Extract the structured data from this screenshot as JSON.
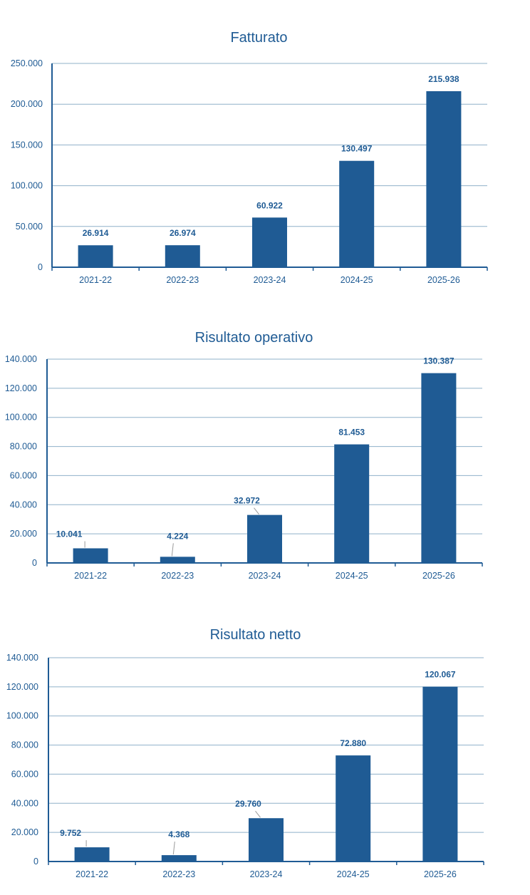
{
  "chart_data": [
    {
      "type": "bar",
      "title": "Fatturato",
      "categories": [
        "2021-22",
        "2022-23",
        "2023-24",
        "2024-25",
        "2025-26"
      ],
      "values": [
        26914,
        26974,
        60922,
        130497,
        215938
      ],
      "value_labels": [
        "26.914",
        "26.974",
        "60.922",
        "130.497",
        "215.938"
      ],
      "ylim": [
        0,
        250000
      ],
      "yticks": [
        "0",
        "50.000",
        "100.000",
        "150.000",
        "200.000",
        "250.000"
      ],
      "xlabel": "",
      "ylabel": "",
      "grid": true,
      "color": "#1f5b94"
    },
    {
      "type": "bar",
      "title": "Risultato operativo",
      "categories": [
        "2021-22",
        "2022-23",
        "2023-24",
        "2024-25",
        "2025-26"
      ],
      "values": [
        10041,
        4224,
        32972,
        81453,
        130387
      ],
      "value_labels": [
        "10.041",
        "4.224",
        "32.972",
        "81.453",
        "130.387"
      ],
      "ylim": [
        0,
        140000
      ],
      "yticks": [
        "0",
        "20.000",
        "40.000",
        "60.000",
        "80.000",
        "100.000",
        "120.000",
        "140.000"
      ],
      "xlabel": "",
      "ylabel": "",
      "grid": true,
      "color": "#1f5b94"
    },
    {
      "type": "bar",
      "title": "Risultato netto",
      "categories": [
        "2021-22",
        "2022-23",
        "2023-24",
        "2024-25",
        "2025-26"
      ],
      "values": [
        9752,
        4368,
        29760,
        72880,
        120067
      ],
      "value_labels": [
        "9.752",
        "4.368",
        "29.760",
        "72.880",
        "120.067"
      ],
      "ylim": [
        0,
        140000
      ],
      "yticks": [
        "0",
        "20.000",
        "40.000",
        "60.000",
        "80.000",
        "100.000",
        "120.000",
        "140.000"
      ],
      "xlabel": "",
      "ylabel": "",
      "grid": true,
      "color": "#1f5b94"
    }
  ]
}
